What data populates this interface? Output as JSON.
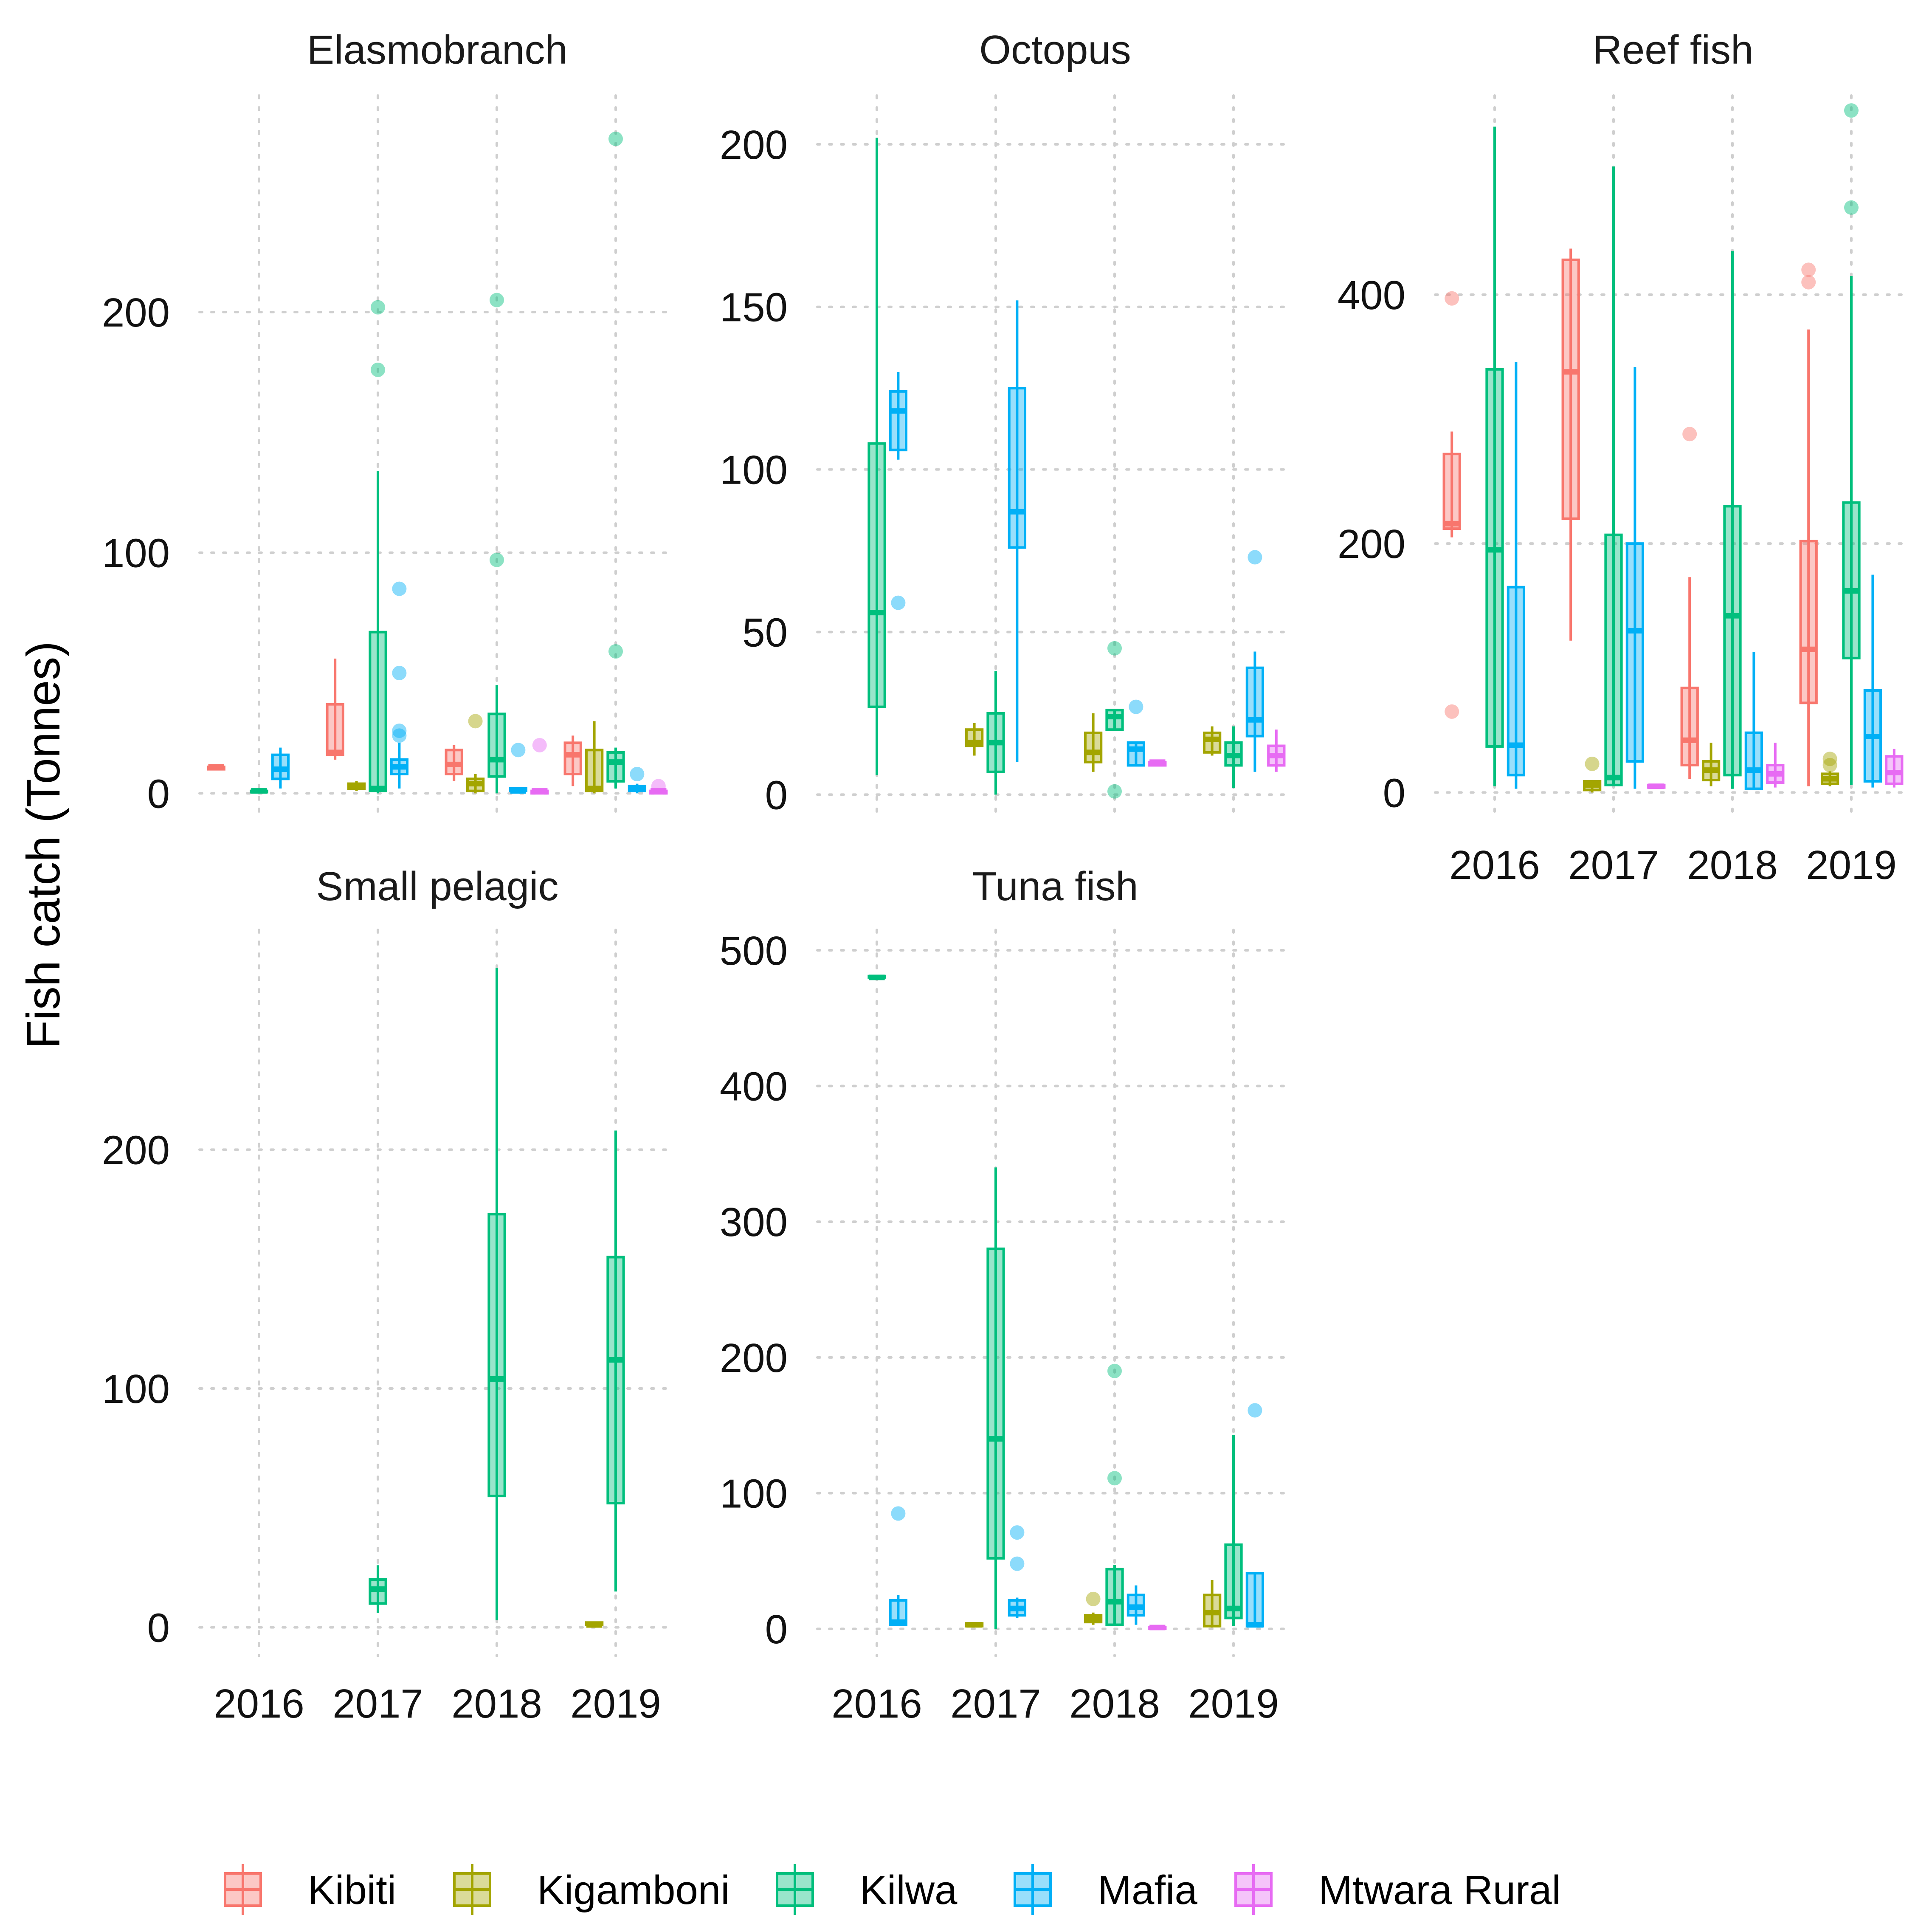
{
  "chart_data": {
    "type": "box",
    "ylabel": "Fish catch (Tonnes)",
    "xlabel": "",
    "years": [
      "2016",
      "2017",
      "2018",
      "2019"
    ],
    "groups": [
      {
        "name": "Kibiti",
        "color": "#F8766D"
      },
      {
        "name": "Kigamboni",
        "color": "#A3A500"
      },
      {
        "name": "Kilwa",
        "color": "#00BF7D"
      },
      {
        "name": "Mafia",
        "color": "#00B0F6"
      },
      {
        "name": "Mtwara Rural",
        "color": "#E76BF3"
      }
    ],
    "panels": [
      {
        "title": "Elasmobranch",
        "ylim": [
          -10,
          290
        ],
        "yticks": [
          0,
          100,
          200
        ],
        "boxes": [
          {
            "year": "2016",
            "group": "Kibiti",
            "min": 10,
            "q1": 10,
            "median": 11,
            "q3": 11,
            "max": 12,
            "outliers": []
          },
          {
            "year": "2016",
            "group": "Kilwa",
            "min": 0,
            "q1": 1,
            "median": 1,
            "q3": 1,
            "max": 2,
            "outliers": []
          },
          {
            "year": "2016",
            "group": "Mafia",
            "min": 2,
            "q1": 6,
            "median": 10,
            "q3": 16,
            "max": 19,
            "outliers": []
          },
          {
            "year": "2017",
            "group": "Kibiti",
            "min": 14,
            "q1": 16,
            "median": 17,
            "q3": 37,
            "max": 56,
            "outliers": []
          },
          {
            "year": "2017",
            "group": "Kigamboni",
            "min": 1,
            "q1": 2,
            "median": 3,
            "q3": 4,
            "max": 5,
            "outliers": []
          },
          {
            "year": "2017",
            "group": "Kilwa",
            "min": 0,
            "q1": 1,
            "median": 2,
            "q3": 67,
            "max": 134,
            "outliers": [
              202,
              176
            ]
          },
          {
            "year": "2017",
            "group": "Mafia",
            "min": 2,
            "q1": 8,
            "median": 11,
            "q3": 14,
            "max": 21,
            "outliers": [
              85,
              50,
              26,
              24
            ]
          },
          {
            "year": "2018",
            "group": "Kibiti",
            "min": 5,
            "q1": 8,
            "median": 12,
            "q3": 18,
            "max": 20,
            "outliers": []
          },
          {
            "year": "2018",
            "group": "Kigamboni",
            "min": 0,
            "q1": 1,
            "median": 4,
            "q3": 6,
            "max": 8,
            "outliers": [
              30
            ]
          },
          {
            "year": "2018",
            "group": "Kilwa",
            "min": 0,
            "q1": 7,
            "median": 14,
            "q3": 33,
            "max": 45,
            "outliers": [
              205,
              97
            ]
          },
          {
            "year": "2018",
            "group": "Mafia",
            "min": 0,
            "q1": 1,
            "median": 1,
            "q3": 2,
            "max": 2,
            "outliers": [
              18
            ]
          },
          {
            "year": "2018",
            "group": "Mtwara Rural",
            "min": 0,
            "q1": 0,
            "median": 1,
            "q3": 1,
            "max": 2,
            "outliers": [
              20
            ]
          },
          {
            "year": "2019",
            "group": "Kibiti",
            "min": 3,
            "q1": 8,
            "median": 16,
            "q3": 21,
            "max": 24,
            "outliers": []
          },
          {
            "year": "2019",
            "group": "Kigamboni",
            "min": 0,
            "q1": 1,
            "median": 2,
            "q3": 18,
            "max": 30,
            "outliers": []
          },
          {
            "year": "2019",
            "group": "Kilwa",
            "min": 2,
            "q1": 5,
            "median": 13,
            "q3": 17,
            "max": 19,
            "outliers": [
              272,
              59
            ]
          },
          {
            "year": "2019",
            "group": "Mafia",
            "min": 0,
            "q1": 1,
            "median": 2,
            "q3": 3,
            "max": 4,
            "outliers": [
              8
            ]
          },
          {
            "year": "2019",
            "group": "Mtwara Rural",
            "min": 0,
            "q1": 0,
            "median": 1,
            "q3": 1,
            "max": 2,
            "outliers": [
              3
            ]
          }
        ]
      },
      {
        "title": "Octopus",
        "ylim": [
          -7,
          215
        ],
        "yticks": [
          0,
          50,
          100,
          150,
          200
        ],
        "boxes": [
          {
            "year": "2016",
            "group": "Kilwa",
            "min": 6,
            "q1": 27,
            "median": 56,
            "q3": 108,
            "max": 202,
            "outliers": []
          },
          {
            "year": "2016",
            "group": "Mafia",
            "min": 103,
            "q1": 106,
            "median": 118,
            "q3": 124,
            "max": 130,
            "outliers": [
              59
            ]
          },
          {
            "year": "2017",
            "group": "Kigamboni",
            "min": 12,
            "q1": 15,
            "median": 16,
            "q3": 20,
            "max": 22,
            "outliers": []
          },
          {
            "year": "2017",
            "group": "Kilwa",
            "min": 0,
            "q1": 7,
            "median": 16,
            "q3": 25,
            "max": 38,
            "outliers": []
          },
          {
            "year": "2017",
            "group": "Mafia",
            "min": 10,
            "q1": 76,
            "median": 87,
            "q3": 125,
            "max": 152,
            "outliers": []
          },
          {
            "year": "2018",
            "group": "Kigamboni",
            "min": 7,
            "q1": 10,
            "median": 13,
            "q3": 19,
            "max": 25,
            "outliers": []
          },
          {
            "year": "2018",
            "group": "Kilwa",
            "min": 20,
            "q1": 20,
            "median": 24,
            "q3": 26,
            "max": 26,
            "outliers": [
              45,
              1
            ]
          },
          {
            "year": "2018",
            "group": "Mafia",
            "min": 9,
            "q1": 9,
            "median": 14,
            "q3": 16,
            "max": 16,
            "outliers": [
              27
            ]
          },
          {
            "year": "2018",
            "group": "Mtwara Rural",
            "min": 9,
            "q1": 9,
            "median": 10,
            "q3": 10,
            "max": 10,
            "outliers": []
          },
          {
            "year": "2019",
            "group": "Kigamboni",
            "min": 12,
            "q1": 13,
            "median": 17,
            "q3": 19,
            "max": 21,
            "outliers": []
          },
          {
            "year": "2019",
            "group": "Kilwa",
            "min": 2,
            "q1": 9,
            "median": 12,
            "q3": 16,
            "max": 21,
            "outliers": []
          },
          {
            "year": "2019",
            "group": "Mafia",
            "min": 7,
            "q1": 18,
            "median": 23,
            "q3": 39,
            "max": 44,
            "outliers": [
              73
            ]
          },
          {
            "year": "2019",
            "group": "Mtwara Rural",
            "min": 7,
            "q1": 9,
            "median": 12,
            "q3": 15,
            "max": 20,
            "outliers": []
          }
        ]
      },
      {
        "title": "Reef fish",
        "ylim": [
          -20,
          560
        ],
        "yticks": [
          0,
          200,
          400
        ],
        "boxes": [
          {
            "year": "2016",
            "group": "Kibiti",
            "min": 205,
            "q1": 212,
            "median": 216,
            "q3": 272,
            "max": 290,
            "outliers": [
              397,
              65
            ]
          },
          {
            "year": "2016",
            "group": "Kilwa",
            "min": 5,
            "q1": 37,
            "median": 195,
            "q3": 340,
            "max": 535,
            "outliers": []
          },
          {
            "year": "2016",
            "group": "Mafia",
            "min": 3,
            "q1": 14,
            "median": 38,
            "q3": 165,
            "max": 346,
            "outliers": []
          },
          {
            "year": "2017",
            "group": "Kibiti",
            "min": 122,
            "q1": 220,
            "median": 338,
            "q3": 428,
            "max": 437,
            "outliers": []
          },
          {
            "year": "2017",
            "group": "Kigamboni",
            "min": 0,
            "q1": 2,
            "median": 6,
            "q3": 9,
            "max": 10,
            "outliers": [
              23
            ]
          },
          {
            "year": "2017",
            "group": "Kilwa",
            "min": 5,
            "q1": 6,
            "median": 12,
            "q3": 207,
            "max": 503,
            "outliers": []
          },
          {
            "year": "2017",
            "group": "Mafia",
            "min": 3,
            "q1": 25,
            "median": 130,
            "q3": 200,
            "max": 342,
            "outliers": []
          },
          {
            "year": "2017",
            "group": "Mtwara Rural",
            "min": 3,
            "q1": 4,
            "median": 5,
            "q3": 6,
            "max": 7,
            "outliers": []
          },
          {
            "year": "2018",
            "group": "Kibiti",
            "min": 11,
            "q1": 22,
            "median": 42,
            "q3": 84,
            "max": 173,
            "outliers": [
              288
            ]
          },
          {
            "year": "2018",
            "group": "Kigamboni",
            "min": 5,
            "q1": 10,
            "median": 18,
            "q3": 25,
            "max": 40,
            "outliers": []
          },
          {
            "year": "2018",
            "group": "Kilwa",
            "min": 3,
            "q1": 14,
            "median": 142,
            "q3": 230,
            "max": 435,
            "outliers": []
          },
          {
            "year": "2018",
            "group": "Mafia",
            "min": 2,
            "q1": 3,
            "median": 18,
            "q3": 48,
            "max": 113,
            "outliers": []
          },
          {
            "year": "2018",
            "group": "Mtwara Rural",
            "min": 4,
            "q1": 8,
            "median": 15,
            "q3": 22,
            "max": 40,
            "outliers": []
          },
          {
            "year": "2019",
            "group": "Kibiti",
            "min": 5,
            "q1": 72,
            "median": 115,
            "q3": 202,
            "max": 372,
            "outliers": [
              420,
              410
            ]
          },
          {
            "year": "2019",
            "group": "Kigamboni",
            "min": 5,
            "q1": 7,
            "median": 11,
            "q3": 15,
            "max": 17,
            "outliers": [
              27,
              22
            ]
          },
          {
            "year": "2019",
            "group": "Kilwa",
            "min": 6,
            "q1": 108,
            "median": 162,
            "q3": 233,
            "max": 415,
            "outliers": [
              548,
              470
            ]
          },
          {
            "year": "2019",
            "group": "Mafia",
            "min": 4,
            "q1": 9,
            "median": 45,
            "q3": 82,
            "max": 175,
            "outliers": []
          },
          {
            "year": "2019",
            "group": "Mtwara Rural",
            "min": 4,
            "q1": 7,
            "median": 16,
            "q3": 29,
            "max": 35,
            "outliers": []
          }
        ]
      },
      {
        "title": "Small pelagic",
        "ylim": [
          -12,
          292
        ],
        "yticks": [
          0,
          100,
          200
        ],
        "boxes": [
          {
            "year": "2017",
            "group": "Kilwa",
            "min": 6,
            "q1": 10,
            "median": 16,
            "q3": 20,
            "max": 26,
            "outliers": []
          },
          {
            "year": "2018",
            "group": "Kilwa",
            "min": 3,
            "q1": 55,
            "median": 104,
            "q3": 173,
            "max": 276,
            "outliers": []
          },
          {
            "year": "2019",
            "group": "Kigamboni",
            "min": 1,
            "q1": 1,
            "median": 1,
            "q3": 2,
            "max": 2,
            "outliers": []
          },
          {
            "year": "2019",
            "group": "Kilwa",
            "min": 15,
            "q1": 52,
            "median": 112,
            "q3": 155,
            "max": 208,
            "outliers": []
          }
        ]
      },
      {
        "title": "Tuna fish",
        "ylim": [
          -20,
          515
        ],
        "yticks": [
          0,
          100,
          200,
          300,
          400,
          500
        ],
        "boxes": [
          {
            "year": "2016",
            "group": "Kilwa",
            "min": 480,
            "q1": 480,
            "median": 480,
            "q3": 481,
            "max": 481,
            "outliers": []
          },
          {
            "year": "2016",
            "group": "Mafia",
            "min": 2,
            "q1": 3,
            "median": 5,
            "q3": 21,
            "max": 25,
            "outliers": [
              85
            ]
          },
          {
            "year": "2017",
            "group": "Kigamboni",
            "min": 1,
            "q1": 2,
            "median": 3,
            "q3": 4,
            "max": 5,
            "outliers": []
          },
          {
            "year": "2017",
            "group": "Kilwa",
            "min": 0,
            "q1": 52,
            "median": 140,
            "q3": 280,
            "max": 340,
            "outliers": []
          },
          {
            "year": "2017",
            "group": "Mafia",
            "min": 8,
            "q1": 10,
            "median": 15,
            "q3": 21,
            "max": 23,
            "outliers": [
              71,
              48
            ]
          },
          {
            "year": "2018",
            "group": "Kigamboni",
            "min": 3,
            "q1": 5,
            "median": 8,
            "q3": 10,
            "max": 12,
            "outliers": [
              22
            ]
          },
          {
            "year": "2018",
            "group": "Kilwa",
            "min": 2,
            "q1": 3,
            "median": 20,
            "q3": 44,
            "max": 47,
            "outliers": [
              190,
              111
            ]
          },
          {
            "year": "2018",
            "group": "Mafia",
            "min": 3,
            "q1": 10,
            "median": 16,
            "q3": 25,
            "max": 32,
            "outliers": []
          },
          {
            "year": "2018",
            "group": "Mtwara Rural",
            "min": 0,
            "q1": 0,
            "median": 1,
            "q3": 1,
            "max": 2,
            "outliers": []
          },
          {
            "year": "2019",
            "group": "Kigamboni",
            "min": 1,
            "q1": 2,
            "median": 12,
            "q3": 25,
            "max": 36,
            "outliers": []
          },
          {
            "year": "2019",
            "group": "Kilwa",
            "min": 2,
            "q1": 8,
            "median": 15,
            "q3": 62,
            "max": 143,
            "outliers": []
          },
          {
            "year": "2019",
            "group": "Mafia",
            "min": 1,
            "q1": 2,
            "median": 3,
            "q3": 41,
            "max": 41,
            "outliers": [
              161
            ]
          }
        ]
      }
    ],
    "legend": {
      "position": "bottom"
    }
  }
}
